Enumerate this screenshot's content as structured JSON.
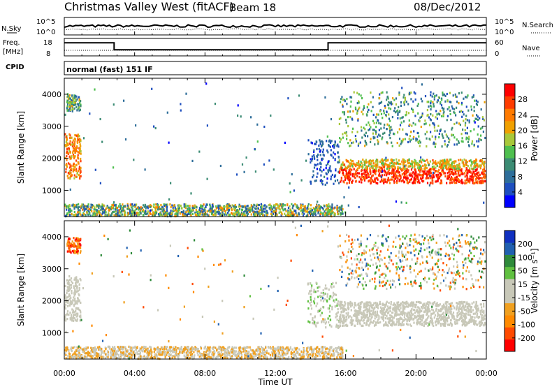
{
  "header": {
    "title": "Christmas Valley West (fitACF)",
    "beam": "Beam 18",
    "date": "08/Dec/2012"
  },
  "info_panels": {
    "nsky_label": "N.Sky",
    "nsky_ticks": [
      "10^5",
      "10^0"
    ],
    "nsearch_label": "N.Search",
    "nsearch_ticks": [
      "10^5",
      "10^0"
    ],
    "freq_label_1": "Freq.",
    "freq_label_2": "[MHz]",
    "freq_ticks": [
      "18",
      "8"
    ],
    "nave_label": "Nave",
    "nave_ticks": [
      "60",
      "0"
    ],
    "cpid_label": "CPID",
    "cpid_value": "normal (fast) 151 IF"
  },
  "colors": {
    "power_scale": [
      "#0000ff",
      "#1e4fbf",
      "#2e6e9a",
      "#3c8c74",
      "#4fbf4f",
      "#a8c83a",
      "#f0a000",
      "#ff7a00",
      "#ff3c00",
      "#ff0000"
    ],
    "velocity_scale": [
      "#ff0000",
      "#ff4a00",
      "#ff8a00",
      "#f0a020",
      "#c8c8b8",
      "#c8c8b8",
      "#60c040",
      "#2e8a3a",
      "#2060b0",
      "#1030c0"
    ]
  },
  "chart_data": [
    {
      "type": "line",
      "name": "frequency",
      "x": [
        "00:00",
        "02:50",
        "02:50",
        "15:00",
        "15:00",
        "24:00"
      ],
      "y": [
        15.5,
        15.5,
        11.5,
        11.5,
        15.5,
        15.5
      ],
      "ylabel": "Freq. [MHz]",
      "ylim": [
        8,
        18
      ]
    },
    {
      "type": "heatmap",
      "name": "power",
      "xlabel": "Time UT",
      "ylabel": "Slant Range [km]",
      "xticks": [
        "00:00",
        "04:00",
        "08:00",
        "12:00",
        "16:00",
        "20:00",
        "00:00"
      ],
      "yticks": [
        "1000",
        "2000",
        "3000",
        "4000"
      ],
      "ylim": [
        180,
        4500
      ],
      "colorbar_label": "Power [dB]",
      "colorbar_ticks": [
        "4",
        "8",
        "12",
        "16",
        "20",
        "24",
        "28"
      ],
      "colorbar_range": [
        0,
        32
      ]
    },
    {
      "type": "heatmap",
      "name": "velocity",
      "xlabel": "Time UT",
      "ylabel": "Slant Range [km]",
      "xticks": [
        "00:00",
        "04:00",
        "08:00",
        "12:00",
        "16:00",
        "20:00",
        "00:00"
      ],
      "yticks": [
        "1000",
        "2000",
        "3000",
        "4000"
      ],
      "ylim": [
        180,
        4500
      ],
      "colorbar_label": "Velocity [m s⁻¹]",
      "colorbar_ticks": [
        "200",
        "100",
        "50",
        "15",
        "-15",
        "-50",
        "-100",
        "-200"
      ],
      "colorbar_range": [
        -250,
        250
      ]
    }
  ]
}
